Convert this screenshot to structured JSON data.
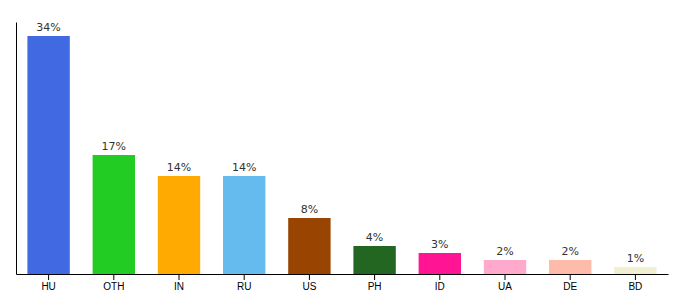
{
  "chart_data": {
    "type": "bar",
    "categories": [
      "HU",
      "OTH",
      "IN",
      "RU",
      "US",
      "PH",
      "ID",
      "UA",
      "DE",
      "BD"
    ],
    "values": [
      34,
      17,
      14,
      14,
      8,
      4,
      3,
      2,
      2,
      1
    ],
    "value_labels": [
      "34%",
      "17%",
      "14%",
      "14%",
      "8%",
      "4%",
      "3%",
      "2%",
      "2%",
      "1%"
    ],
    "colors": [
      "#4169e1",
      "#22cc22",
      "#ffaa00",
      "#66bbee",
      "#994400",
      "#226622",
      "#ff1493",
      "#ffaacc",
      "#ffbbaa",
      "#f0f0d0"
    ],
    "ylim": [
      0,
      36
    ],
    "data_labels": true,
    "tick_labels": "x",
    "grid": false
  }
}
